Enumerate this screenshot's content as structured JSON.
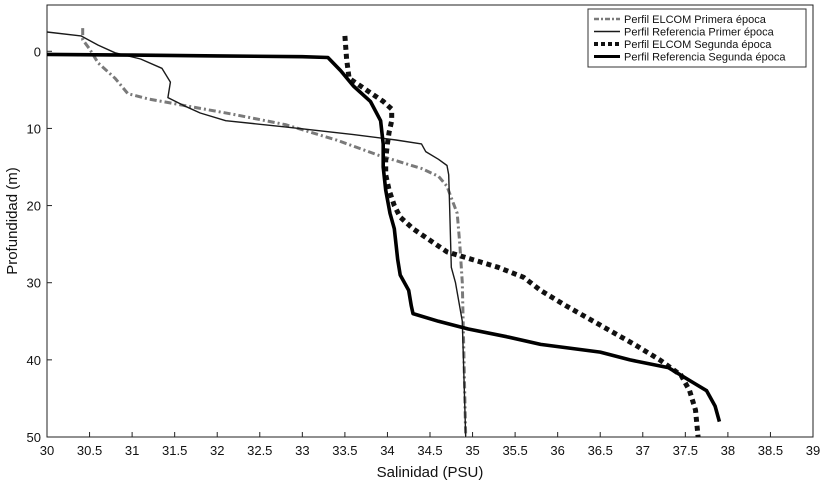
{
  "chart_data": {
    "type": "line",
    "title": "",
    "xlabel": "Salinidad (PSU)",
    "ylabel": "Profundidad (m)",
    "xlim": [
      30,
      39
    ],
    "ylim": [
      50,
      -6
    ],
    "y_inverted": true,
    "grid": false,
    "legend_position": "top-right",
    "x_ticks": [
      "30",
      "30.5",
      "31",
      "31.5",
      "32",
      "32.5",
      "33",
      "33.5",
      "34",
      "34.5",
      "35",
      "35.5",
      "36",
      "36.5",
      "37",
      "37.5",
      "38",
      "38.5",
      "39"
    ],
    "y_ticks": [
      "0",
      "10",
      "20",
      "30",
      "40",
      "50"
    ],
    "series": [
      {
        "name": "Perfil ELCOM Primera época",
        "style": "dash-dot",
        "color": "#7a7a7a",
        "points": [
          [
            30.42,
            -3
          ],
          [
            30.42,
            -1.5
          ],
          [
            30.5,
            -0.3
          ],
          [
            30.6,
            1.5
          ],
          [
            30.8,
            3.5
          ],
          [
            30.95,
            5.5
          ],
          [
            31.2,
            6.2
          ],
          [
            31.6,
            7
          ],
          [
            32.2,
            8.2
          ],
          [
            32.8,
            9.5
          ],
          [
            33.4,
            11.5
          ],
          [
            33.9,
            13.5
          ],
          [
            34.4,
            15.2
          ],
          [
            34.6,
            16.2
          ],
          [
            34.7,
            17.5
          ],
          [
            34.75,
            19
          ],
          [
            34.82,
            21
          ],
          [
            34.85,
            25
          ],
          [
            34.88,
            30
          ],
          [
            34.9,
            40
          ],
          [
            34.92,
            50
          ]
        ]
      },
      {
        "name": "Perfil Referencia Primer época",
        "style": "solid-thin",
        "color": "#1a1a1a",
        "points": [
          [
            30,
            -2.5
          ],
          [
            30.4,
            -2
          ],
          [
            30.6,
            -0.8
          ],
          [
            30.8,
            0.2
          ],
          [
            31.1,
            1
          ],
          [
            31.35,
            2.2
          ],
          [
            31.45,
            4
          ],
          [
            31.42,
            6
          ],
          [
            31.6,
            7
          ],
          [
            31.8,
            8
          ],
          [
            32.1,
            9
          ],
          [
            32.8,
            9.8
          ],
          [
            33.6,
            10.8
          ],
          [
            34.1,
            11.5
          ],
          [
            34.4,
            12
          ],
          [
            34.45,
            13
          ],
          [
            34.6,
            14
          ],
          [
            34.7,
            14.8
          ],
          [
            34.72,
            16
          ],
          [
            34.73,
            20
          ],
          [
            34.75,
            28
          ],
          [
            34.8,
            30
          ],
          [
            34.88,
            35
          ],
          [
            34.92,
            50
          ]
        ]
      },
      {
        "name": "Perfil ELCOM Segunda época",
        "style": "dotted-thick",
        "color": "#111111",
        "points": [
          [
            33.5,
            -2
          ],
          [
            33.52,
            1
          ],
          [
            33.55,
            3.5
          ],
          [
            33.75,
            5
          ],
          [
            33.95,
            6.5
          ],
          [
            34.05,
            7.5
          ],
          [
            34.05,
            9
          ],
          [
            34.02,
            10.5
          ],
          [
            34,
            12
          ],
          [
            33.98,
            14
          ],
          [
            33.98,
            16
          ],
          [
            34.02,
            18
          ],
          [
            34.08,
            20
          ],
          [
            34.15,
            21.5
          ],
          [
            34.3,
            23
          ],
          [
            34.5,
            24.5
          ],
          [
            34.7,
            26
          ],
          [
            35,
            27
          ],
          [
            35.3,
            28
          ],
          [
            35.6,
            29.3
          ],
          [
            35.8,
            31
          ],
          [
            36.1,
            33
          ],
          [
            36.5,
            35.5
          ],
          [
            36.9,
            38
          ],
          [
            37.2,
            40
          ],
          [
            37.45,
            42
          ],
          [
            37.55,
            44
          ],
          [
            37.62,
            46.5
          ],
          [
            37.65,
            50
          ]
        ]
      },
      {
        "name": "Perfil Referencia Segunda época",
        "style": "solid-thick",
        "color": "#000000",
        "points": [
          [
            30,
            0.4
          ],
          [
            31,
            0.5
          ],
          [
            32,
            0.6
          ],
          [
            33,
            0.7
          ],
          [
            33.3,
            0.8
          ],
          [
            33.45,
            2.5
          ],
          [
            33.6,
            4.5
          ],
          [
            33.8,
            6.5
          ],
          [
            33.92,
            9
          ],
          [
            33.95,
            12
          ],
          [
            33.95,
            15
          ],
          [
            33.98,
            18
          ],
          [
            34.03,
            21
          ],
          [
            34.08,
            23
          ],
          [
            34.1,
            25
          ],
          [
            34.12,
            27
          ],
          [
            34.15,
            29
          ],
          [
            34.25,
            31
          ],
          [
            34.28,
            33
          ],
          [
            34.3,
            34
          ],
          [
            34.6,
            35
          ],
          [
            34.95,
            36
          ],
          [
            35.4,
            37
          ],
          [
            35.8,
            38
          ],
          [
            36.5,
            39
          ],
          [
            36.85,
            40
          ],
          [
            37.3,
            41
          ],
          [
            37.6,
            43
          ],
          [
            37.75,
            44
          ],
          [
            37.85,
            46
          ],
          [
            37.9,
            48
          ]
        ]
      }
    ]
  }
}
